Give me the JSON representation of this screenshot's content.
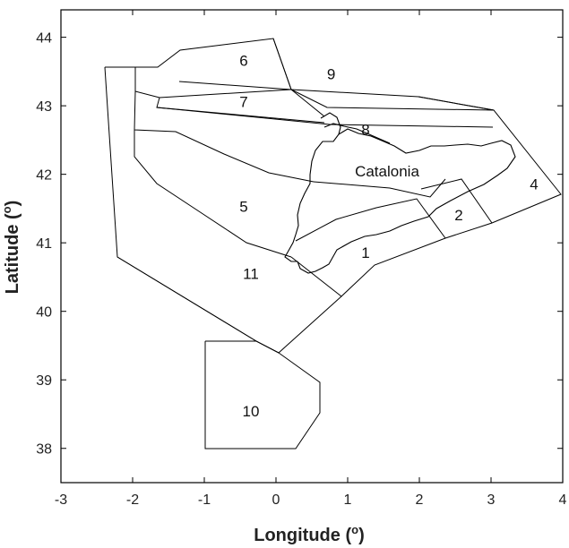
{
  "chart_data": {
    "type": "map",
    "xlabel": "Longitude (",
    "xlabel_sup": "o",
    "xlabel_end": ")",
    "ylabel": "Latitude (",
    "ylabel_sup": "o",
    "ylabel_end": ")",
    "xlim": [
      -3,
      4
    ],
    "ylim": [
      37.5,
      44.4
    ],
    "xticks": [
      -3,
      -2,
      -1,
      0,
      1,
      2,
      3,
      4
    ],
    "yticks": [
      38,
      39,
      40,
      41,
      42,
      43,
      44
    ],
    "labels": [
      {
        "text": "1",
        "lon": 1.25,
        "lat": 40.78
      },
      {
        "text": "2",
        "lon": 2.55,
        "lat": 41.33
      },
      {
        "text": "4",
        "lon": 3.6,
        "lat": 41.78
      },
      {
        "text": "5",
        "lon": -0.45,
        "lat": 41.45
      },
      {
        "text": "6",
        "lon": -0.45,
        "lat": 43.58
      },
      {
        "text": "7",
        "lon": -0.45,
        "lat": 42.98
      },
      {
        "text": "8",
        "lon": 1.25,
        "lat": 42.58
      },
      {
        "text": "9",
        "lon": 0.77,
        "lat": 43.39
      },
      {
        "text": "10",
        "lon": -0.35,
        "lat": 38.47
      },
      {
        "text": "11",
        "lon": -0.35,
        "lat": 40.47
      },
      {
        "text": "Catalonia",
        "lon": 1.55,
        "lat": 41.97
      }
    ],
    "zone_lines": [
      [
        [
          -2.4,
          43.53
        ],
        [
          -2.0,
          43.53
        ],
        [
          -1.8,
          43.53
        ],
        [
          -1.4,
          43.78
        ],
        [
          -0.05,
          43.95
        ],
        [
          0.85,
          43.6
        ],
        [
          2.0,
          43.1
        ],
        [
          3.05,
          42.92
        ],
        [
          4.0,
          41.65
        ],
        [
          3.0,
          41.27
        ],
        [
          2.35,
          41.0
        ],
        [
          1.4,
          40.67
        ],
        [
          0.95,
          40.22
        ],
        [
          0.0,
          39.4
        ],
        [
          -0.3,
          39.55
        ],
        [
          -2.25,
          40.8
        ],
        [
          -2.4,
          43.53
        ]
      ]
    ]
  }
}
